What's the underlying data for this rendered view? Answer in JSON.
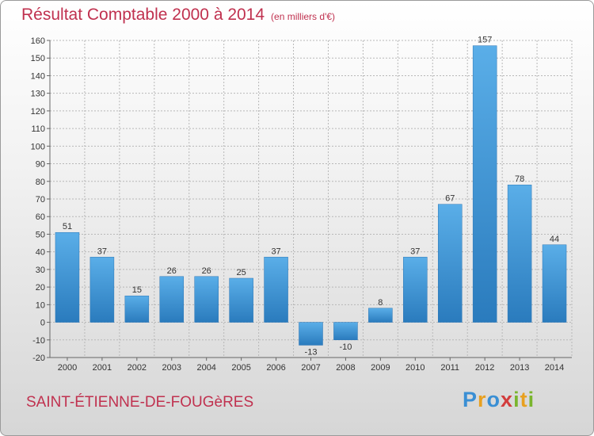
{
  "chart_data": {
    "type": "bar",
    "title": "Résultat Comptable 2000 à 2014",
    "subtitle": "(en milliers d'€)",
    "categories": [
      "2000",
      "2001",
      "2002",
      "2003",
      "2004",
      "2005",
      "2006",
      "2007",
      "2008",
      "2009",
      "2010",
      "2011",
      "2012",
      "2013",
      "2014"
    ],
    "values": [
      51,
      37,
      15,
      26,
      26,
      25,
      37,
      -13,
      -10,
      8,
      37,
      67,
      157,
      78,
      44
    ],
    "value_labels": [
      "51",
      "37",
      "15",
      "26",
      "26",
      "25",
      "37",
      "-13",
      "-10",
      "8",
      "37",
      "67",
      "157",
      "78",
      "44"
    ],
    "ylim": [
      -20,
      160
    ],
    "yticks": [
      -20,
      -10,
      0,
      10,
      20,
      30,
      40,
      50,
      60,
      70,
      80,
      90,
      100,
      110,
      120,
      130,
      140,
      150,
      160
    ],
    "grid": true,
    "bar_color_top": "#5aaee8",
    "bar_color_bottom": "#2a7bbd"
  },
  "footer": {
    "commune": "SAINT-ÉTIENNE-DE-FOUGèRES",
    "logo_letters": [
      {
        "ch": "P",
        "color": "#3a8fd4"
      },
      {
        "ch": "r",
        "color": "#e8a020"
      },
      {
        "ch": "o",
        "color": "#3a8fd4"
      },
      {
        "ch": "x",
        "color": "#d23c3c"
      },
      {
        "ch": "i",
        "color": "#7ab52e"
      },
      {
        "ch": "t",
        "color": "#e8a020"
      },
      {
        "ch": "i",
        "color": "#7ab52e"
      }
    ]
  },
  "colors": {
    "title": "#c0314f",
    "grid": "#b8b8b8"
  }
}
